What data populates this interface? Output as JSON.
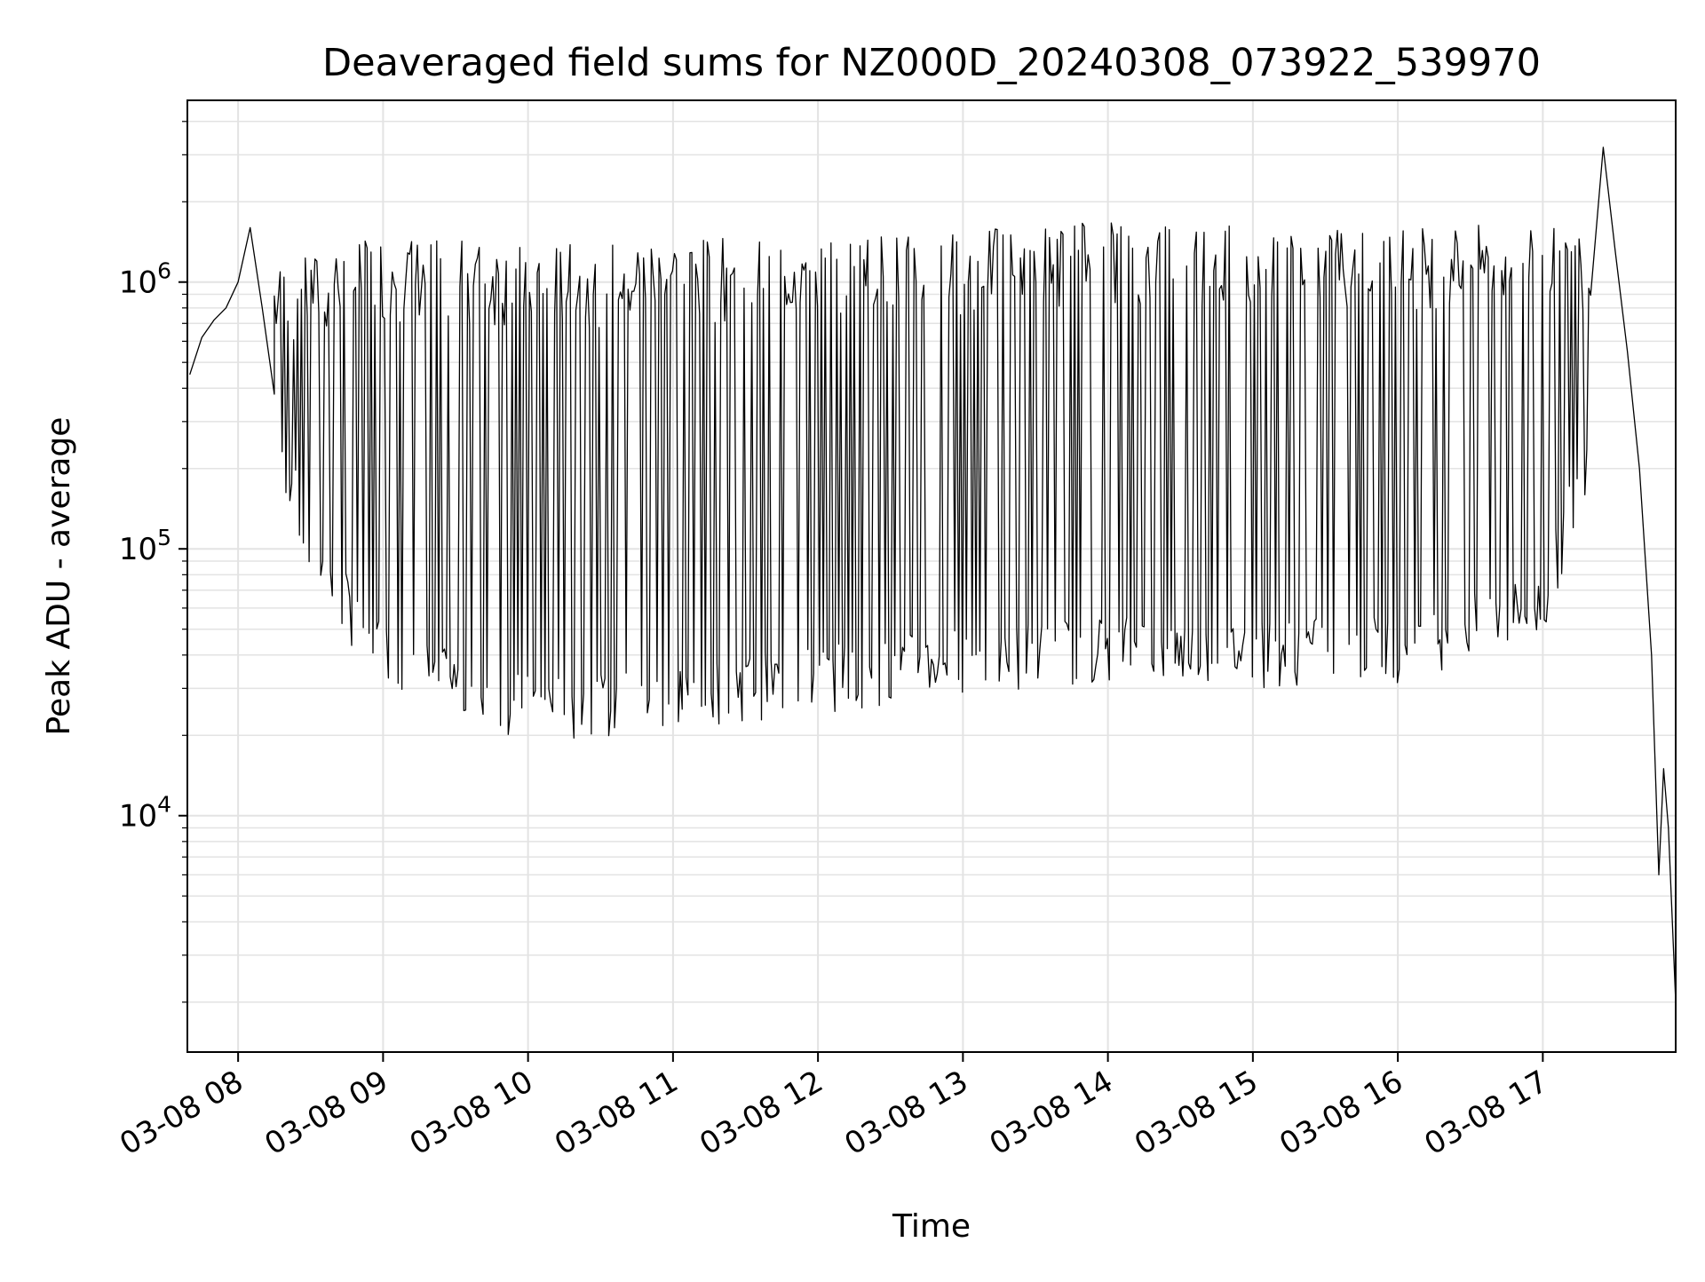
{
  "chart_data": {
    "type": "line",
    "title": "Deaveraged field sums for NZ000D_20240308_073922_539970",
    "xlabel": "Time",
    "ylabel": "Peak ADU - average",
    "yscale": "log",
    "ylim": [
      1300,
      4800000
    ],
    "xlim": [
      "03-08 07:39",
      "03-08 17:55"
    ],
    "grid": true,
    "x_tick_labels": [
      "03-08 08",
      "03-08 09",
      "03-08 10",
      "03-08 11",
      "03-08 12",
      "03-08 13",
      "03-08 14",
      "03-08 15",
      "03-08 16",
      "03-08 17"
    ],
    "y_tick_labels": [
      {
        "base": "10",
        "exp": "4",
        "value": 10000
      },
      {
        "base": "10",
        "exp": "5",
        "value": 100000
      },
      {
        "base": "10",
        "exp": "6",
        "value": 1000000
      }
    ],
    "series": [
      {
        "color": "#000000",
        "points": [
          {
            "t": "03-08 07:40",
            "v": 450000
          },
          {
            "t": "03-08 07:45",
            "v": 620000
          },
          {
            "t": "03-08 07:50",
            "v": 720000
          },
          {
            "t": "03-08 07:55",
            "v": 800000
          },
          {
            "t": "03-08 08:00",
            "v": 1000000
          },
          {
            "t": "03-08 08:05",
            "v": 1600000
          },
          {
            "t": "03-08 08:10",
            "v": 800000
          },
          {
            "t": "03-08 08:15",
            "v": 380000
          },
          {
            "t": "03-08 08:20",
            "v": 300000
          },
          {
            "t": "03-08 08:25",
            "v": 220000
          },
          {
            "t": "03-08 08:30",
            "v": 140000
          },
          {
            "t": "03-08 08:35",
            "v": 100000
          },
          {
            "t": "03-08 08:40",
            "v": 95000
          },
          {
            "t": "03-08 08:45",
            "v": 85000
          },
          {
            "t": "03-08 08:50",
            "v": 80000
          },
          {
            "t": "03-08 09:00",
            "v": 70000
          },
          {
            "t": "03-08 09:15",
            "v": 60000
          },
          {
            "t": "03-08 09:30",
            "v": 50000
          },
          {
            "t": "03-08 09:45",
            "v": 40000
          },
          {
            "t": "03-08 10:00",
            "v": 30000
          },
          {
            "t": "03-08 10:30",
            "v": 35000
          },
          {
            "t": "03-08 11:00",
            "v": 40000
          },
          {
            "t": "03-08 12:00",
            "v": 45000
          },
          {
            "t": "03-08 13:00",
            "v": 55000
          },
          {
            "t": "03-08 14:00",
            "v": 65000
          },
          {
            "t": "03-08 15:00",
            "v": 60000
          },
          {
            "t": "03-08 16:00",
            "v": 65000
          },
          {
            "t": "03-08 17:00",
            "v": 100000
          },
          {
            "t": "03-08 17:10",
            "v": 500000
          },
          {
            "t": "03-08 17:20",
            "v": 700000
          },
          {
            "t": "03-08 17:25",
            "v": 3200000
          },
          {
            "t": "03-08 17:30",
            "v": 1300000
          },
          {
            "t": "03-08 17:35",
            "v": 550000
          },
          {
            "t": "03-08 17:40",
            "v": 200000
          },
          {
            "t": "03-08 17:45",
            "v": 40000
          },
          {
            "t": "03-08 17:48",
            "v": 6000
          },
          {
            "t": "03-08 17:50",
            "v": 15000
          },
          {
            "t": "03-08 17:52",
            "v": 9000
          },
          {
            "t": "03-08 17:55",
            "v": 2000
          }
        ],
        "high_envelope": [
          {
            "t": "03-08 08:15",
            "v": 1000000
          },
          {
            "t": "03-08 09:00",
            "v": 1300000
          },
          {
            "t": "03-08 10:00",
            "v": 1200000
          },
          {
            "t": "03-08 11:00",
            "v": 1250000
          },
          {
            "t": "03-08 12:00",
            "v": 1300000
          },
          {
            "t": "03-08 13:00",
            "v": 1350000
          },
          {
            "t": "03-08 14:00",
            "v": 1500000
          },
          {
            "t": "03-08 15:00",
            "v": 1450000
          },
          {
            "t": "03-08 16:00",
            "v": 1400000
          },
          {
            "t": "03-08 17:00",
            "v": 1450000
          },
          {
            "t": "03-08 17:20",
            "v": 1400000
          }
        ],
        "low_envelope": [
          {
            "t": "03-08 08:15",
            "v": 300000
          },
          {
            "t": "03-08 08:30",
            "v": 90000
          },
          {
            "t": "03-08 09:00",
            "v": 40000
          },
          {
            "t": "03-08 09:30",
            "v": 30000
          },
          {
            "t": "03-08 10:00",
            "v": 25000
          },
          {
            "t": "03-08 10:30",
            "v": 25000
          },
          {
            "t": "03-08 11:00",
            "v": 28000
          },
          {
            "t": "03-08 11:30",
            "v": 30000
          },
          {
            "t": "03-08 12:00",
            "v": 32000
          },
          {
            "t": "03-08 13:00",
            "v": 38000
          },
          {
            "t": "03-08 14:00",
            "v": 42000
          },
          {
            "t": "03-08 15:00",
            "v": 40000
          },
          {
            "t": "03-08 16:00",
            "v": 42000
          },
          {
            "t": "03-08 17:00",
            "v": 60000
          },
          {
            "t": "03-08 17:20",
            "v": 250000
          }
        ]
      }
    ]
  }
}
